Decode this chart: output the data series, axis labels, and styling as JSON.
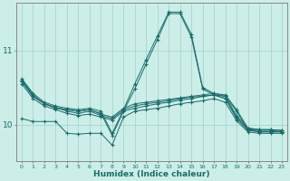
{
  "xlabel": "Humidex (Indice chaleur)",
  "ylabel": "",
  "background_color": "#cceee8",
  "grid_color": "#aad4ce",
  "line_color": "#1a6b6b",
  "xlim": [
    -0.5,
    23.5
  ],
  "ylim": [
    9.5,
    11.65
  ],
  "yticks": [
    10,
    11
  ],
  "xticks": [
    0,
    1,
    2,
    3,
    4,
    5,
    6,
    7,
    8,
    9,
    10,
    11,
    12,
    13,
    14,
    15,
    16,
    17,
    18,
    19,
    20,
    21,
    22,
    23
  ],
  "lines": [
    {
      "x": [
        0,
        1,
        2,
        3,
        4,
        5,
        6,
        7,
        8,
        9,
        10,
        11,
        12,
        13,
        14,
        15,
        16,
        17,
        18,
        19,
        20,
        21,
        22,
        23
      ],
      "y": [
        10.62,
        10.42,
        10.3,
        10.25,
        10.22,
        10.2,
        10.22,
        10.18,
        9.88,
        10.2,
        10.55,
        10.88,
        11.2,
        11.52,
        11.52,
        11.22,
        10.5,
        10.42,
        10.4,
        10.2,
        9.95,
        9.93,
        9.93,
        9.92
      ]
    },
    {
      "x": [
        0,
        1,
        2,
        3,
        4,
        5,
        6,
        7,
        8,
        9,
        10,
        11,
        12,
        13,
        14,
        15,
        16,
        17,
        18,
        19,
        20,
        21,
        22,
        23
      ],
      "y": [
        10.6,
        10.4,
        10.28,
        10.23,
        10.2,
        10.18,
        10.2,
        10.15,
        9.85,
        10.18,
        10.48,
        10.82,
        11.15,
        11.5,
        11.5,
        11.18,
        10.48,
        10.4,
        10.38,
        10.18,
        9.93,
        9.92,
        9.92,
        9.9
      ]
    },
    {
      "x": [
        0,
        1,
        2,
        3,
        4,
        5,
        6,
        7,
        8,
        9,
        10,
        11,
        12,
        13,
        14,
        15,
        16,
        17,
        18,
        19,
        20,
        21,
        22,
        23
      ],
      "y": [
        10.6,
        10.38,
        10.28,
        10.22,
        10.2,
        10.18,
        10.2,
        10.14,
        10.1,
        10.22,
        10.28,
        10.3,
        10.32,
        10.34,
        10.36,
        10.38,
        10.4,
        10.42,
        10.38,
        10.12,
        9.95,
        9.93,
        9.93,
        9.92
      ]
    },
    {
      "x": [
        0,
        1,
        2,
        3,
        4,
        5,
        6,
        7,
        8,
        9,
        10,
        11,
        12,
        13,
        14,
        15,
        16,
        17,
        18,
        19,
        20,
        21,
        22,
        23
      ],
      "y": [
        10.55,
        10.35,
        10.25,
        10.2,
        10.15,
        10.12,
        10.14,
        10.1,
        10.06,
        10.18,
        10.22,
        10.25,
        10.28,
        10.3,
        10.33,
        10.35,
        10.38,
        10.4,
        10.35,
        10.08,
        9.92,
        9.9,
        9.9,
        9.9
      ]
    },
    {
      "x": [
        0,
        1,
        2,
        3,
        4,
        5,
        6,
        7,
        8,
        9,
        10,
        11,
        12,
        13,
        14,
        15,
        16,
        17,
        18,
        19,
        20,
        21,
        22,
        23
      ],
      "y": [
        10.58,
        10.38,
        10.28,
        10.23,
        10.18,
        10.15,
        10.18,
        10.12,
        10.08,
        10.2,
        10.25,
        10.28,
        10.3,
        10.32,
        10.35,
        10.37,
        10.38,
        10.4,
        10.35,
        10.1,
        9.93,
        9.9,
        9.9,
        9.9
      ]
    },
    {
      "x": [
        0,
        1,
        2,
        3,
        4,
        5,
        6,
        7,
        8,
        9,
        10,
        11,
        12,
        13,
        14,
        15,
        16,
        17,
        18,
        19,
        20,
        21,
        22,
        23
      ],
      "y": [
        10.08,
        10.04,
        10.04,
        10.04,
        9.88,
        9.87,
        9.88,
        9.88,
        9.72,
        10.1,
        10.18,
        10.2,
        10.22,
        10.25,
        10.28,
        10.3,
        10.32,
        10.35,
        10.3,
        10.05,
        9.9,
        9.88,
        9.88,
        9.88
      ]
    }
  ]
}
